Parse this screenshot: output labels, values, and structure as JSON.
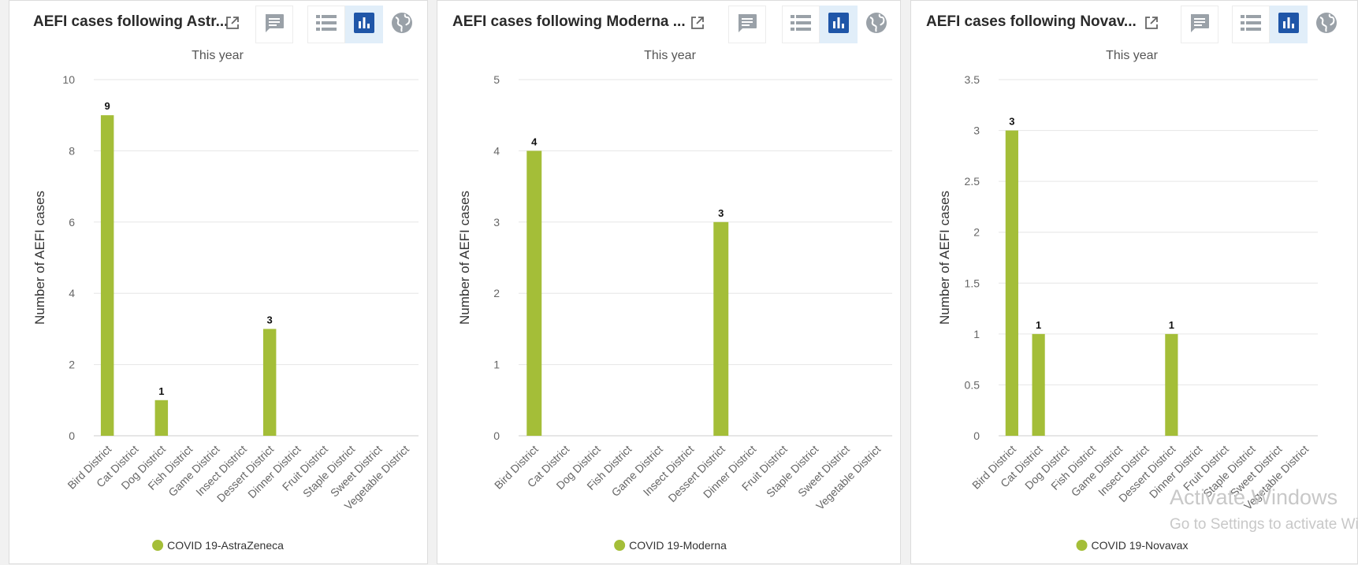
{
  "colors": {
    "bar": "#a4be38",
    "grid": "#e6e6e6",
    "axis_text": "#666666",
    "icon": "#9aa1a8",
    "icon_active": "#1f56a8"
  },
  "toolbar": {
    "interpretation_icon": "chat-bubble-icon",
    "table_icon": "list-icon",
    "chart_icon": "bar-chart-icon",
    "map_icon": "globe-icon"
  },
  "panels": [
    {
      "title": "AEFI cases following Astr...",
      "subtitle": "This year",
      "legend": "COVID 19-AstraZeneca"
    },
    {
      "title": "AEFI cases following Moderna ...",
      "subtitle": "This year",
      "legend": "COVID 19-Moderna"
    },
    {
      "title": "AEFI cases following Novav...",
      "subtitle": "This year",
      "legend": "COVID 19-Novavax"
    }
  ],
  "chart_data": [
    {
      "type": "bar",
      "title": "AEFI cases following Astr...",
      "subtitle": "This year",
      "categories": [
        "Bird District",
        "Cat District",
        "Dog District",
        "Fish District",
        "Game District",
        "Insect District",
        "Dessert District",
        "Dinner District",
        "Fruit District",
        "Staple District",
        "Sweet District",
        "Vegetable District"
      ],
      "series": [
        {
          "name": "COVID 19-AstraZeneca",
          "values": [
            9,
            0,
            1,
            0,
            0,
            0,
            3,
            0,
            0,
            0,
            0,
            0
          ]
        }
      ],
      "ylabel": "Number of AEFI cases",
      "ylim": [
        0,
        10
      ],
      "yticks": [
        "0",
        "2",
        "4",
        "6",
        "8",
        "10"
      ],
      "legend_position": "bottom",
      "grid": true
    },
    {
      "type": "bar",
      "title": "AEFI cases following Moderna ...",
      "subtitle": "This year",
      "categories": [
        "Bird District",
        "Cat District",
        "Dog District",
        "Fish District",
        "Game District",
        "Insect District",
        "Dessert District",
        "Dinner District",
        "Fruit District",
        "Staple District",
        "Sweet District",
        "Vegetable District"
      ],
      "series": [
        {
          "name": "COVID 19-Moderna",
          "values": [
            4,
            0,
            0,
            0,
            0,
            0,
            3,
            0,
            0,
            0,
            0,
            0
          ]
        }
      ],
      "ylabel": "Number of AEFI cases",
      "ylim": [
        0,
        5
      ],
      "yticks": [
        "0",
        "1",
        "2",
        "3",
        "4",
        "5"
      ],
      "legend_position": "bottom",
      "grid": true
    },
    {
      "type": "bar",
      "title": "AEFI cases following Novav...",
      "subtitle": "This year",
      "categories": [
        "Bird District",
        "Cat District",
        "Dog District",
        "Fish District",
        "Game District",
        "Insect District",
        "Dessert District",
        "Dinner District",
        "Fruit District",
        "Staple District",
        "Sweet District",
        "Vegetable District"
      ],
      "series": [
        {
          "name": "COVID 19-Novavax",
          "values": [
            3,
            1,
            0,
            0,
            0,
            0,
            1,
            0,
            0,
            0,
            0,
            0
          ]
        }
      ],
      "ylabel": "Number of AEFI cases",
      "ylim": [
        0,
        3.5
      ],
      "yticks": [
        "0",
        "0.5",
        "1",
        "1.5",
        "2",
        "2.5",
        "3",
        "3.5"
      ],
      "legend_position": "bottom",
      "grid": true
    }
  ],
  "watermark": {
    "line1": "Activate Windows",
    "line2": "Go to Settings to activate Windows."
  }
}
